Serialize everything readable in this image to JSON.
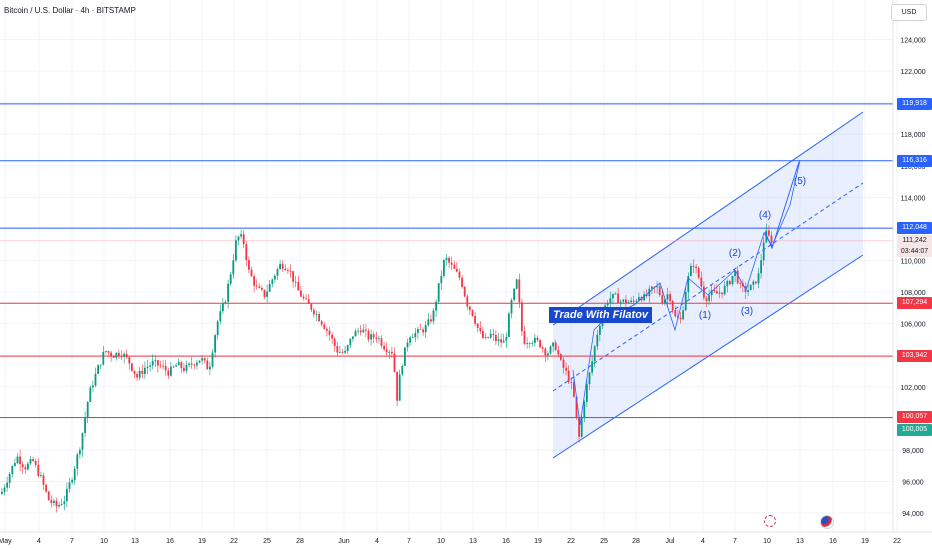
{
  "header": {
    "title": "Bitcoin / U.S. Dollar · 4h · BITSTAMP",
    "currency": "USD"
  },
  "watermark": "Trade With Filatov",
  "chart_data": {
    "type": "candlestick",
    "y_ticks": [
      "124,000",
      "122,000",
      "120,000",
      "118,000",
      "116,000",
      "114,000",
      "112,000",
      "110,000",
      "108,000",
      "106,000",
      "104,000",
      "102,000",
      "100,000",
      "98,000",
      "96,000",
      "94,000"
    ],
    "y_tick_values": [
      124000,
      122000,
      120000,
      118000,
      116000,
      114000,
      112000,
      110000,
      108000,
      106000,
      104000,
      102000,
      100000,
      98000,
      96000,
      94000
    ],
    "ylim": [
      92800,
      126500
    ],
    "x_ticks": [
      "May",
      "4",
      "7",
      "10",
      "13",
      "16",
      "19",
      "22",
      "25",
      "28",
      "Jun",
      "4",
      "7",
      "10",
      "13",
      "16",
      "19",
      "22",
      "25",
      "28",
      "Jul",
      "4",
      "7",
      "10",
      "13",
      "16",
      "19",
      "22"
    ],
    "horizontal_levels": [
      {
        "value": 119918,
        "label": "119,918",
        "color": "#2962ff"
      },
      {
        "value": 116316,
        "label": "116,316",
        "color": "#2962ff"
      },
      {
        "value": 112048,
        "label": "112,048",
        "color": "#2962ff"
      },
      {
        "value": 107294,
        "label": "107,294",
        "color": "#f23645"
      },
      {
        "value": 103942,
        "label": "103,942",
        "color": "#f23645"
      },
      {
        "value": 100057,
        "label": "100,057",
        "color": "#f23645"
      }
    ],
    "current_price": {
      "value": 111242,
      "label": "111,242",
      "countdown": "03:44:07"
    },
    "low_marker": {
      "value": 100005,
      "label": "100,005"
    },
    "price_path": [
      [
        0,
        95200
      ],
      [
        8,
        96400
      ],
      [
        16,
        97600
      ],
      [
        24,
        96900
      ],
      [
        32,
        97300
      ],
      [
        40,
        96200
      ],
      [
        48,
        94800
      ],
      [
        56,
        94400
      ],
      [
        64,
        94900
      ],
      [
        72,
        96500
      ],
      [
        80,
        98500
      ],
      [
        88,
        101500
      ],
      [
        96,
        103000
      ],
      [
        104,
        104300
      ],
      [
        112,
        104000
      ],
      [
        120,
        104200
      ],
      [
        128,
        103600
      ],
      [
        136,
        102600
      ],
      [
        144,
        103200
      ],
      [
        152,
        103500
      ],
      [
        160,
        103300
      ],
      [
        168,
        102900
      ],
      [
        176,
        103400
      ],
      [
        184,
        103100
      ],
      [
        192,
        103500
      ],
      [
        200,
        103800
      ],
      [
        208,
        103100
      ],
      [
        216,
        106000
      ],
      [
        224,
        107400
      ],
      [
        230,
        109300
      ],
      [
        236,
        111500
      ],
      [
        242,
        111400
      ],
      [
        248,
        109300
      ],
      [
        256,
        108200
      ],
      [
        264,
        107800
      ],
      [
        272,
        108900
      ],
      [
        280,
        109800
      ],
      [
        288,
        109500
      ],
      [
        296,
        108200
      ],
      [
        304,
        107400
      ],
      [
        312,
        106900
      ],
      [
        320,
        106200
      ],
      [
        328,
        105400
      ],
      [
        336,
        104300
      ],
      [
        344,
        104100
      ],
      [
        352,
        105300
      ],
      [
        360,
        105700
      ],
      [
        368,
        105100
      ],
      [
        376,
        105200
      ],
      [
        384,
        104500
      ],
      [
        392,
        104200
      ],
      [
        396,
        101200
      ],
      [
        400,
        103200
      ],
      [
        408,
        105300
      ],
      [
        416,
        105400
      ],
      [
        424,
        105700
      ],
      [
        432,
        106500
      ],
      [
        438,
        108400
      ],
      [
        444,
        110200
      ],
      [
        452,
        109500
      ],
      [
        460,
        108800
      ],
      [
        466,
        107300
      ],
      [
        472,
        106600
      ],
      [
        478,
        105500
      ],
      [
        484,
        104900
      ],
      [
        490,
        105300
      ],
      [
        496,
        104900
      ],
      [
        504,
        104800
      ],
      [
        510,
        107200
      ],
      [
        516,
        108700
      ],
      [
        522,
        104900
      ],
      [
        530,
        105000
      ],
      [
        538,
        104800
      ],
      [
        546,
        104100
      ],
      [
        554,
        104700
      ],
      [
        560,
        103500
      ],
      [
        566,
        102800
      ],
      [
        572,
        101800
      ],
      [
        578,
        98700
      ],
      [
        584,
        101500
      ],
      [
        590,
        103200
      ],
      [
        596,
        105300
      ],
      [
        602,
        106800
      ],
      [
        608,
        107600
      ],
      [
        614,
        107700
      ],
      [
        620,
        107400
      ],
      [
        626,
        107400
      ],
      [
        632,
        107300
      ],
      [
        638,
        107800
      ],
      [
        644,
        107600
      ],
      [
        650,
        108100
      ],
      [
        656,
        108300
      ],
      [
        662,
        107400
      ],
      [
        668,
        108000
      ],
      [
        674,
        106400
      ],
      [
        680,
        106200
      ],
      [
        686,
        108600
      ],
      [
        692,
        109900
      ],
      [
        698,
        108900
      ],
      [
        704,
        107600
      ],
      [
        710,
        107900
      ],
      [
        716,
        107900
      ],
      [
        722,
        108100
      ],
      [
        728,
        108600
      ],
      [
        734,
        109300
      ],
      [
        740,
        108200
      ],
      [
        746,
        108100
      ],
      [
        752,
        108400
      ],
      [
        758,
        109100
      ],
      [
        764,
        111800
      ],
      [
        770,
        111300
      ]
    ],
    "wave_labels": [
      "(1)",
      "(2)",
      "(3)",
      "(4)",
      "(5)"
    ],
    "channel": {
      "color": "#2962ff",
      "fill": "rgba(41,98,255,0.10)"
    }
  }
}
